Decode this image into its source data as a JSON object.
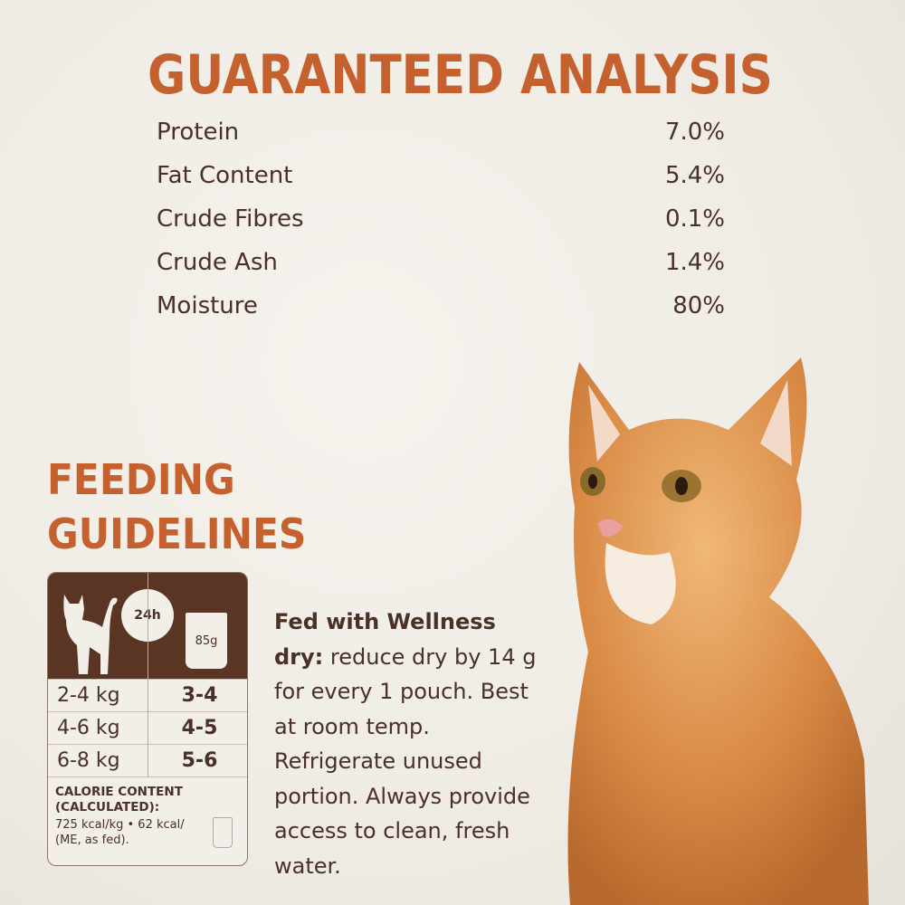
{
  "analysis": {
    "title": "GUARANTEED ANALYSIS",
    "rows": [
      {
        "label": "Protein",
        "value": "7.0%"
      },
      {
        "label": "Fat Content",
        "value": "5.4%"
      },
      {
        "label": "Crude Fibres",
        "value": "0.1%"
      },
      {
        "label": "Crude Ash",
        "value": "1.4%"
      },
      {
        "label": "Moisture",
        "value": "80%"
      }
    ]
  },
  "feeding": {
    "title_line1": "FEEDING",
    "title_line2": "GUIDELINES",
    "clock_label": "24h",
    "pouch_label": "85g",
    "rows": [
      {
        "weight": "2-4 kg",
        "pouches": "3-4"
      },
      {
        "weight": "4-6 kg",
        "pouches": "4-5"
      },
      {
        "weight": "6-8 kg",
        "pouches": "5-6"
      }
    ],
    "calorie_title": "CALORIE CONTENT (CALCULATED):",
    "calorie_text": "725 kcal/kg • 62 kcal/ (ME, as fed).",
    "note_bold": "Fed with Wellness dry:",
    "note_text": "reduce dry by 14 g for every 1 pouch. Best at room temp. Refrigerate unused portion. Always provide access to clean, fresh water."
  },
  "colors": {
    "accent": "#c4612e",
    "brown": "#5b3524",
    "background": "#eeeae3"
  }
}
